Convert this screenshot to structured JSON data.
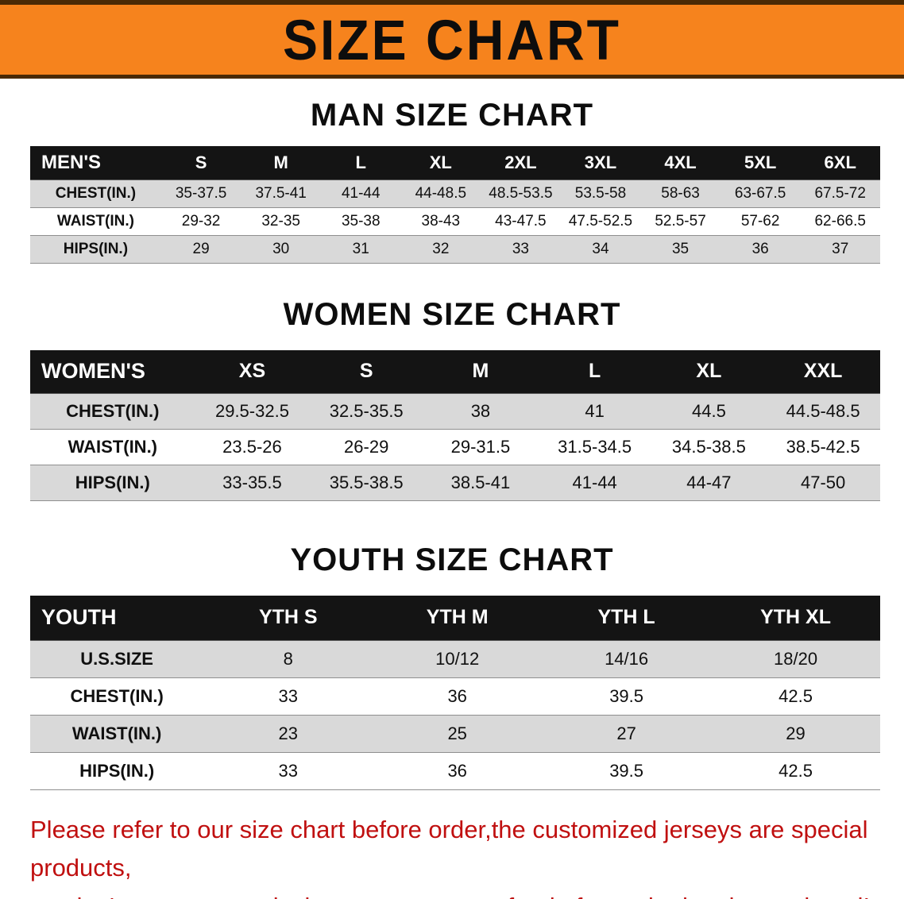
{
  "banner": {
    "title": "SIZE CHART"
  },
  "colors": {
    "banner_bg": "#f6831d",
    "banner_border": "#4a2a05",
    "table_header_bg": "#141414",
    "row_stripe": "#d9d9d9",
    "warning_text": "#c01010"
  },
  "chart_data": [
    {
      "type": "table",
      "title": "MAN SIZE CHART",
      "columns": [
        "MEN'S",
        "S",
        "M",
        "L",
        "XL",
        "2XL",
        "3XL",
        "4XL",
        "5XL",
        "6XL"
      ],
      "rows": [
        [
          "CHEST(IN.)",
          "35-37.5",
          "37.5-41",
          "41-44",
          "44-48.5",
          "48.5-53.5",
          "53.5-58",
          "58-63",
          "63-67.5",
          "67.5-72"
        ],
        [
          "WAIST(IN.)",
          "29-32",
          "32-35",
          "35-38",
          "38-43",
          "43-47.5",
          "47.5-52.5",
          "52.5-57",
          "57-62",
          "62-66.5"
        ],
        [
          "HIPS(IN.)",
          "29",
          "30",
          "31",
          "32",
          "33",
          "34",
          "35",
          "36",
          "37"
        ]
      ]
    },
    {
      "type": "table",
      "title": "WOMEN SIZE CHART",
      "columns": [
        "WOMEN'S",
        "XS",
        "S",
        "M",
        "L",
        "XL",
        "XXL"
      ],
      "rows": [
        [
          "CHEST(IN.)",
          "29.5-32.5",
          "32.5-35.5",
          "38",
          "41",
          "44.5",
          "44.5-48.5"
        ],
        [
          "WAIST(IN.)",
          "23.5-26",
          "26-29",
          "29-31.5",
          "31.5-34.5",
          "34.5-38.5",
          "38.5-42.5"
        ],
        [
          "HIPS(IN.)",
          "33-35.5",
          "35.5-38.5",
          "38.5-41",
          "41-44",
          "44-47",
          "47-50"
        ]
      ]
    },
    {
      "type": "table",
      "title": "YOUTH SIZE CHART",
      "columns": [
        "YOUTH",
        "YTH S",
        "YTH M",
        "YTH L",
        "YTH XL"
      ],
      "rows": [
        [
          "U.S.SIZE",
          "8",
          "10/12",
          "14/16",
          "18/20"
        ],
        [
          "CHEST(IN.)",
          "33",
          "36",
          "39.5",
          "42.5"
        ],
        [
          "WAIST(IN.)",
          "23",
          "25",
          "27",
          "29"
        ],
        [
          "HIPS(IN.)",
          "33",
          "36",
          "39.5",
          "42.5"
        ]
      ]
    }
  ],
  "footer": {
    "line1": "Please refer to our size chart before order,the customized jerseys are special products,",
    "line2": "we don't accept cancel, change, teturn or refund after order has been placed!"
  }
}
